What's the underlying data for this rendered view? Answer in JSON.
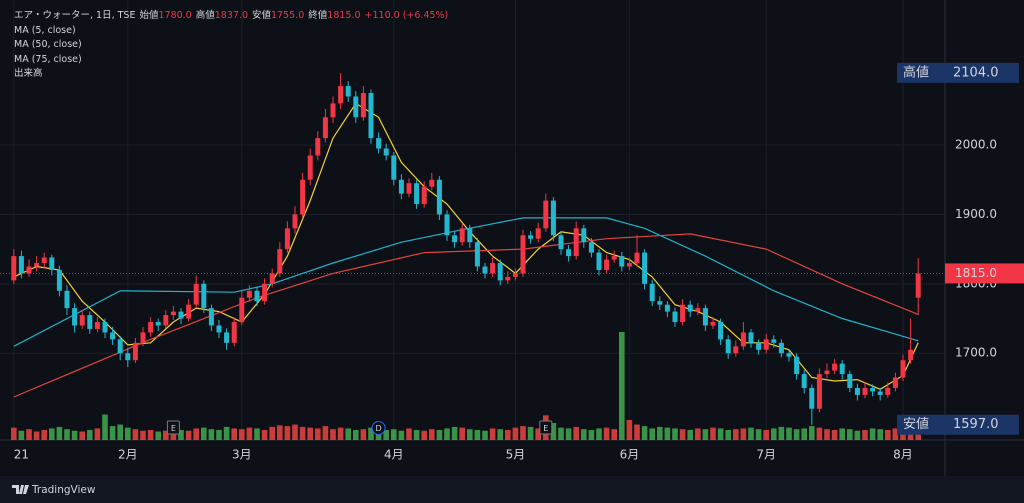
{
  "header": {
    "symbol": "エア・ウォーター, 1日, TSE",
    "fields": [
      {
        "name": "始値",
        "value": "1780.0"
      },
      {
        "name": "高値",
        "value": "1837.0"
      },
      {
        "name": "安値",
        "value": "1755.0"
      },
      {
        "name": "終値",
        "value": "1815.0"
      }
    ],
    "change": "+110.0 (+6.45%)",
    "indicators": [
      "MA (5, close)",
      "MA (50, close)",
      "MA (75, close)",
      "出来高"
    ]
  },
  "footer": {
    "brand": "TradingView"
  },
  "chart_data": {
    "type": "candlestick",
    "up_color": "#f23645",
    "down_color": "#22b8cf",
    "volume_up_color": "#e0423e",
    "volume_down_color": "#3fa34d",
    "ylim": [
      1575,
      2209
    ],
    "yticks": [
      {
        "value": 1700,
        "label": "1700.0"
      },
      {
        "value": 1800,
        "label": "1800.0"
      },
      {
        "value": 1900,
        "label": "1900.0"
      },
      {
        "value": 2000,
        "label": "2000.0"
      }
    ],
    "xticks": [
      {
        "value": 0,
        "label": "21"
      },
      {
        "value": 15,
        "label": "2月"
      },
      {
        "value": 30,
        "label": "3月"
      },
      {
        "value": 50,
        "label": "4月"
      },
      {
        "value": 66,
        "label": "5月"
      },
      {
        "value": 81,
        "label": "6月"
      },
      {
        "value": 99,
        "label": "7月"
      },
      {
        "value": 117,
        "label": "8月"
      }
    ],
    "grid": true,
    "ohlc": [
      [
        1805,
        1850,
        1800,
        1840
      ],
      [
        1840,
        1848,
        1808,
        1815
      ],
      [
        1815,
        1835,
        1810,
        1825
      ],
      [
        1825,
        1840,
        1818,
        1830
      ],
      [
        1830,
        1845,
        1822,
        1838
      ],
      [
        1838,
        1842,
        1812,
        1820
      ],
      [
        1820,
        1826,
        1782,
        1790
      ],
      [
        1790,
        1798,
        1755,
        1765
      ],
      [
        1765,
        1772,
        1730,
        1740
      ],
      [
        1740,
        1762,
        1735,
        1755
      ],
      [
        1755,
        1760,
        1728,
        1735
      ],
      [
        1735,
        1752,
        1730,
        1745
      ],
      [
        1745,
        1750,
        1722,
        1730
      ],
      [
        1730,
        1738,
        1712,
        1720
      ],
      [
        1720,
        1725,
        1690,
        1700
      ],
      [
        1700,
        1708,
        1680,
        1690
      ],
      [
        1690,
        1722,
        1686,
        1715
      ],
      [
        1715,
        1738,
        1710,
        1730
      ],
      [
        1730,
        1752,
        1724,
        1745
      ],
      [
        1745,
        1750,
        1732,
        1740
      ],
      [
        1740,
        1762,
        1736,
        1755
      ],
      [
        1755,
        1768,
        1748,
        1760
      ],
      [
        1760,
        1765,
        1742,
        1750
      ],
      [
        1750,
        1778,
        1746,
        1770
      ],
      [
        1770,
        1812,
        1765,
        1800
      ],
      [
        1800,
        1805,
        1758,
        1765
      ],
      [
        1765,
        1770,
        1732,
        1740
      ],
      [
        1740,
        1748,
        1722,
        1730
      ],
      [
        1730,
        1736,
        1705,
        1715
      ],
      [
        1715,
        1752,
        1710,
        1745
      ],
      [
        1745,
        1790,
        1740,
        1780
      ],
      [
        1780,
        1798,
        1774,
        1790
      ],
      [
        1790,
        1796,
        1768,
        1775
      ],
      [
        1775,
        1808,
        1770,
        1800
      ],
      [
        1800,
        1822,
        1795,
        1815
      ],
      [
        1815,
        1860,
        1810,
        1850
      ],
      [
        1850,
        1890,
        1845,
        1880
      ],
      [
        1880,
        1912,
        1872,
        1900
      ],
      [
        1900,
        1960,
        1895,
        1950
      ],
      [
        1950,
        1995,
        1942,
        1985
      ],
      [
        1985,
        2020,
        1978,
        2010
      ],
      [
        2010,
        2052,
        2004,
        2040
      ],
      [
        2040,
        2070,
        2032,
        2060
      ],
      [
        2060,
        2104,
        2052,
        2085
      ],
      [
        2085,
        2092,
        2062,
        2070
      ],
      [
        2070,
        2078,
        2032,
        2040
      ],
      [
        2040,
        2085,
        2035,
        2075
      ],
      [
        2075,
        2080,
        2002,
        2010
      ],
      [
        2010,
        2018,
        1988,
        1995
      ],
      [
        1995,
        2002,
        1978,
        1985
      ],
      [
        1985,
        1990,
        1942,
        1950
      ],
      [
        1950,
        1958,
        1922,
        1930
      ],
      [
        1930,
        1952,
        1925,
        1945
      ],
      [
        1945,
        1950,
        1908,
        1915
      ],
      [
        1915,
        1948,
        1910,
        1940
      ],
      [
        1940,
        1960,
        1935,
        1950
      ],
      [
        1950,
        1955,
        1892,
        1900
      ],
      [
        1900,
        1906,
        1862,
        1870
      ],
      [
        1870,
        1875,
        1852,
        1860
      ],
      [
        1860,
        1888,
        1855,
        1880
      ],
      [
        1880,
        1885,
        1852,
        1860
      ],
      [
        1860,
        1866,
        1818,
        1825
      ],
      [
        1825,
        1830,
        1808,
        1815
      ],
      [
        1815,
        1838,
        1810,
        1830
      ],
      [
        1830,
        1835,
        1798,
        1805
      ],
      [
        1805,
        1818,
        1800,
        1810
      ],
      [
        1810,
        1822,
        1805,
        1815
      ],
      [
        1815,
        1878,
        1810,
        1870
      ],
      [
        1870,
        1876,
        1858,
        1865
      ],
      [
        1865,
        1888,
        1860,
        1880
      ],
      [
        1880,
        1930,
        1875,
        1920
      ],
      [
        1920,
        1925,
        1862,
        1870
      ],
      [
        1870,
        1876,
        1842,
        1850
      ],
      [
        1850,
        1856,
        1832,
        1840
      ],
      [
        1840,
        1890,
        1835,
        1880
      ],
      [
        1880,
        1885,
        1852,
        1860
      ],
      [
        1860,
        1866,
        1838,
        1845
      ],
      [
        1845,
        1850,
        1812,
        1820
      ],
      [
        1820,
        1842,
        1815,
        1835
      ],
      [
        1835,
        1848,
        1830,
        1840
      ],
      [
        1840,
        1846,
        1818,
        1825
      ],
      [
        1825,
        1838,
        1820,
        1830
      ],
      [
        1830,
        1870,
        1825,
        1845
      ],
      [
        1845,
        1850,
        1792,
        1800
      ],
      [
        1800,
        1806,
        1768,
        1775
      ],
      [
        1775,
        1782,
        1762,
        1770
      ],
      [
        1770,
        1775,
        1752,
        1760
      ],
      [
        1760,
        1766,
        1738,
        1745
      ],
      [
        1745,
        1778,
        1740,
        1770
      ],
      [
        1770,
        1776,
        1752,
        1760
      ],
      [
        1760,
        1772,
        1755,
        1765
      ],
      [
        1765,
        1770,
        1732,
        1740
      ],
      [
        1740,
        1752,
        1735,
        1745
      ],
      [
        1745,
        1750,
        1712,
        1720
      ],
      [
        1720,
        1726,
        1692,
        1700
      ],
      [
        1700,
        1718,
        1695,
        1710
      ],
      [
        1710,
        1745,
        1705,
        1730
      ],
      [
        1730,
        1735,
        1708,
        1715
      ],
      [
        1715,
        1720,
        1698,
        1705
      ],
      [
        1705,
        1728,
        1700,
        1720
      ],
      [
        1720,
        1726,
        1708,
        1715
      ],
      [
        1715,
        1720,
        1694,
        1700
      ],
      [
        1700,
        1705,
        1688,
        1695
      ],
      [
        1695,
        1700,
        1662,
        1670
      ],
      [
        1670,
        1676,
        1642,
        1650
      ],
      [
        1650,
        1655,
        1597,
        1620
      ],
      [
        1620,
        1678,
        1615,
        1670
      ],
      [
        1670,
        1685,
        1664,
        1675
      ],
      [
        1675,
        1692,
        1670,
        1685
      ],
      [
        1685,
        1690,
        1662,
        1670
      ],
      [
        1670,
        1675,
        1644,
        1650
      ],
      [
        1650,
        1656,
        1632,
        1640
      ],
      [
        1640,
        1658,
        1635,
        1650
      ],
      [
        1650,
        1655,
        1638,
        1645
      ],
      [
        1645,
        1650,
        1632,
        1640
      ],
      [
        1640,
        1658,
        1636,
        1650
      ],
      [
        1650,
        1672,
        1645,
        1665
      ],
      [
        1665,
        1698,
        1660,
        1690
      ],
      [
        1690,
        1750,
        1685,
        1705
      ],
      [
        1780,
        1837,
        1755,
        1815
      ]
    ],
    "volume": [
      160,
      120,
      140,
      110,
      130,
      150,
      170,
      140,
      120,
      110,
      130,
      150,
      330,
      180,
      200,
      160,
      140,
      120,
      130,
      110,
      120,
      140,
      130,
      120,
      150,
      160,
      140,
      130,
      170,
      150,
      140,
      160,
      150,
      130,
      170,
      190,
      180,
      200,
      170,
      160,
      150,
      180,
      140,
      160,
      150,
      130,
      140,
      160,
      150,
      130,
      140,
      120,
      150,
      130,
      120,
      140,
      130,
      150,
      170,
      160,
      140,
      130,
      120,
      150,
      140,
      130,
      160,
      180,
      170,
      150,
      320,
      220,
      160,
      150,
      170,
      140,
      130,
      150,
      160,
      140,
      1400,
      260,
      200,
      180,
      150,
      170,
      160,
      150,
      140,
      130,
      150,
      140,
      160,
      150,
      130,
      140,
      150,
      160,
      140,
      130,
      150,
      170,
      160,
      140,
      150,
      180,
      160,
      140,
      130,
      150,
      140,
      120,
      130,
      150,
      140,
      130,
      150,
      170,
      160,
      220
    ],
    "series": [
      {
        "name": "MA (5, close)",
        "color": "#f5d230",
        "x": [
          0,
          3,
          6,
          9,
          12,
          15,
          18,
          21,
          24,
          27,
          30,
          33,
          36,
          39,
          42,
          45,
          48,
          51,
          54,
          57,
          60,
          63,
          66,
          69,
          72,
          75,
          78,
          81,
          84,
          87,
          90,
          93,
          96,
          99,
          102,
          105,
          108,
          111,
          114,
          117,
          119
        ],
        "values": [
          1810,
          1825,
          1820,
          1775,
          1745,
          1712,
          1715,
          1745,
          1765,
          1760,
          1745,
          1785,
          1840,
          1920,
          2010,
          2060,
          2040,
          1975,
          1940,
          1915,
          1875,
          1840,
          1815,
          1850,
          1875,
          1870,
          1845,
          1835,
          1810,
          1770,
          1760,
          1745,
          1715,
          1715,
          1705,
          1665,
          1660,
          1662,
          1648,
          1668,
          1715
        ]
      },
      {
        "name": "MA (50, close)",
        "color": "#1fb3c9",
        "x": [
          0,
          14,
          29,
          34,
          42,
          51,
          59,
          67,
          78,
          83,
          91,
          100,
          109,
          119
        ],
        "values": [
          1710,
          1790,
          1788,
          1800,
          1830,
          1860,
          1878,
          1895,
          1895,
          1880,
          1840,
          1790,
          1750,
          1718
        ]
      },
      {
        "name": "MA (75, close)",
        "color": "#e0453f",
        "x": [
          0,
          18,
          32,
          42,
          54,
          67,
          78,
          89,
          99,
          109,
          119
        ],
        "values": [
          1637,
          1720,
          1780,
          1815,
          1845,
          1850,
          1865,
          1872,
          1850,
          1800,
          1756
        ]
      }
    ],
    "events": [
      {
        "index": 21,
        "label": "E"
      },
      {
        "index": 48,
        "label": "D"
      },
      {
        "index": 70,
        "label": "E"
      }
    ],
    "price_labels": [
      {
        "name": "高値",
        "value": 2104,
        "label": "2104.0"
      },
      {
        "name": "安値",
        "value": 1597,
        "label": "1597.0"
      }
    ],
    "last_price": {
      "value": 1815,
      "label": "1815.0"
    }
  }
}
